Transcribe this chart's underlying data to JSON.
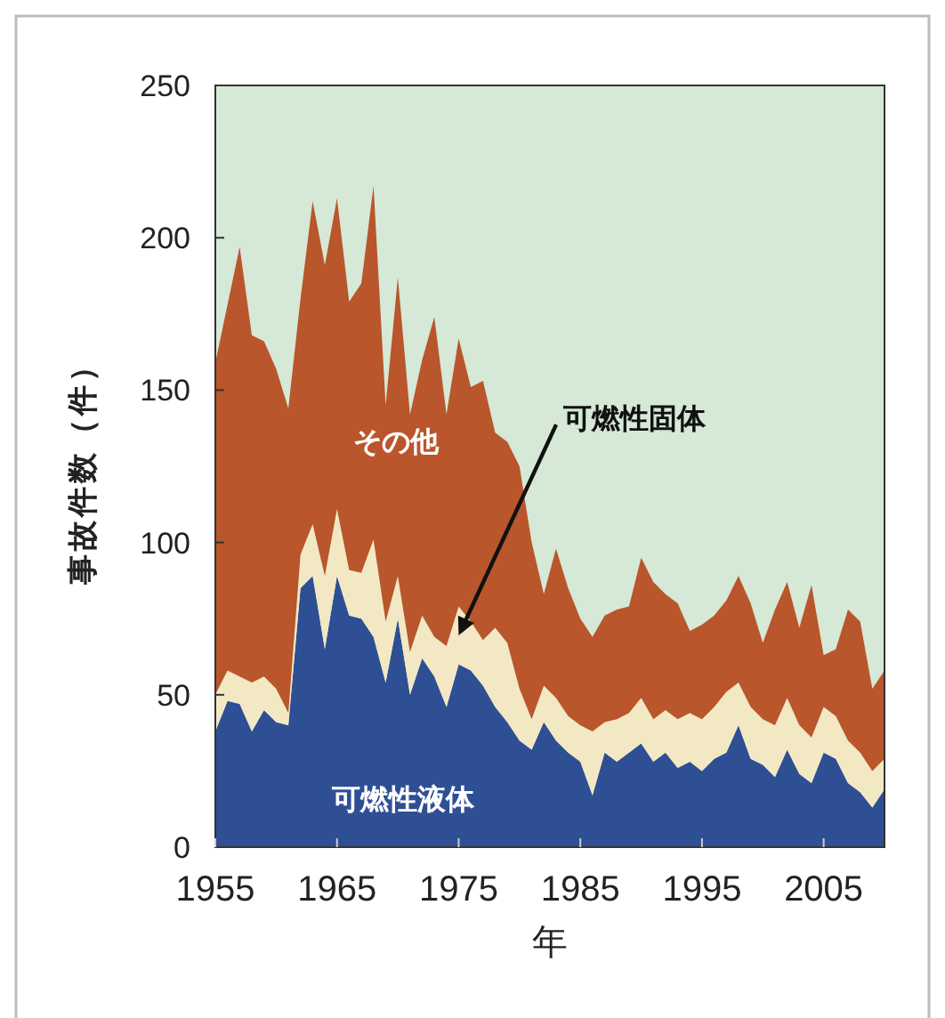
{
  "chart_data": {
    "type": "area",
    "stacked": true,
    "ylabel": "事故件数（件）",
    "xlabel": "年",
    "x": [
      1955,
      1956,
      1957,
      1958,
      1959,
      1960,
      1961,
      1962,
      1963,
      1964,
      1965,
      1966,
      1967,
      1968,
      1969,
      1970,
      1971,
      1972,
      1973,
      1974,
      1975,
      1976,
      1977,
      1978,
      1979,
      1980,
      1981,
      1982,
      1983,
      1984,
      1985,
      1986,
      1987,
      1988,
      1989,
      1990,
      1991,
      1992,
      1993,
      1994,
      1995,
      1996,
      1997,
      1998,
      1999,
      2000,
      2001,
      2002,
      2003,
      2004,
      2005,
      2006,
      2007,
      2008,
      2009,
      2010
    ],
    "xlim": [
      1955,
      2010
    ],
    "xticks": [
      1955,
      1965,
      1975,
      1985,
      1995,
      2005
    ],
    "ylim": [
      0,
      250
    ],
    "yticks": [
      0,
      50,
      100,
      150,
      200,
      250
    ],
    "series": [
      {
        "name": "可燃性液体",
        "color": "#2f4f94",
        "values": [
          38,
          48,
          47,
          38,
          45,
          41,
          40,
          85,
          89,
          65,
          89,
          76,
          75,
          69,
          54,
          75,
          50,
          62,
          56,
          46,
          60,
          58,
          53,
          46,
          41,
          35,
          32,
          41,
          35,
          31,
          28,
          17,
          31,
          28,
          31,
          34,
          28,
          31,
          26,
          28,
          25,
          29,
          31,
          40,
          29,
          27,
          23,
          32,
          24,
          21,
          31,
          29,
          21,
          18,
          13,
          19
        ]
      },
      {
        "name": "可燃性固体",
        "color": "#f3e8c4",
        "values": [
          12,
          10,
          9,
          16,
          11,
          11,
          4,
          11,
          17,
          24,
          22,
          15,
          15,
          32,
          20,
          14,
          14,
          14,
          13,
          20,
          19,
          16,
          15,
          26,
          26,
          17,
          10,
          12,
          14,
          12,
          12,
          21,
          10,
          14,
          13,
          15,
          14,
          14,
          16,
          16,
          17,
          17,
          20,
          14,
          17,
          15,
          17,
          17,
          16,
          15,
          15,
          14,
          14,
          13,
          12,
          10
        ]
      },
      {
        "name": "その他",
        "color": "#b9562b",
        "values": [
          109,
          120,
          141,
          114,
          110,
          105,
          100,
          84,
          106,
          102,
          102,
          88,
          95,
          116,
          71,
          98,
          78,
          84,
          105,
          76,
          88,
          77,
          85,
          64,
          66,
          73,
          58,
          30,
          49,
          42,
          35,
          31,
          35,
          36,
          35,
          46,
          45,
          38,
          38,
          27,
          31,
          30,
          30,
          35,
          34,
          25,
          38,
          38,
          32,
          50,
          17,
          22,
          43,
          43,
          27,
          29
        ]
      }
    ]
  }
}
